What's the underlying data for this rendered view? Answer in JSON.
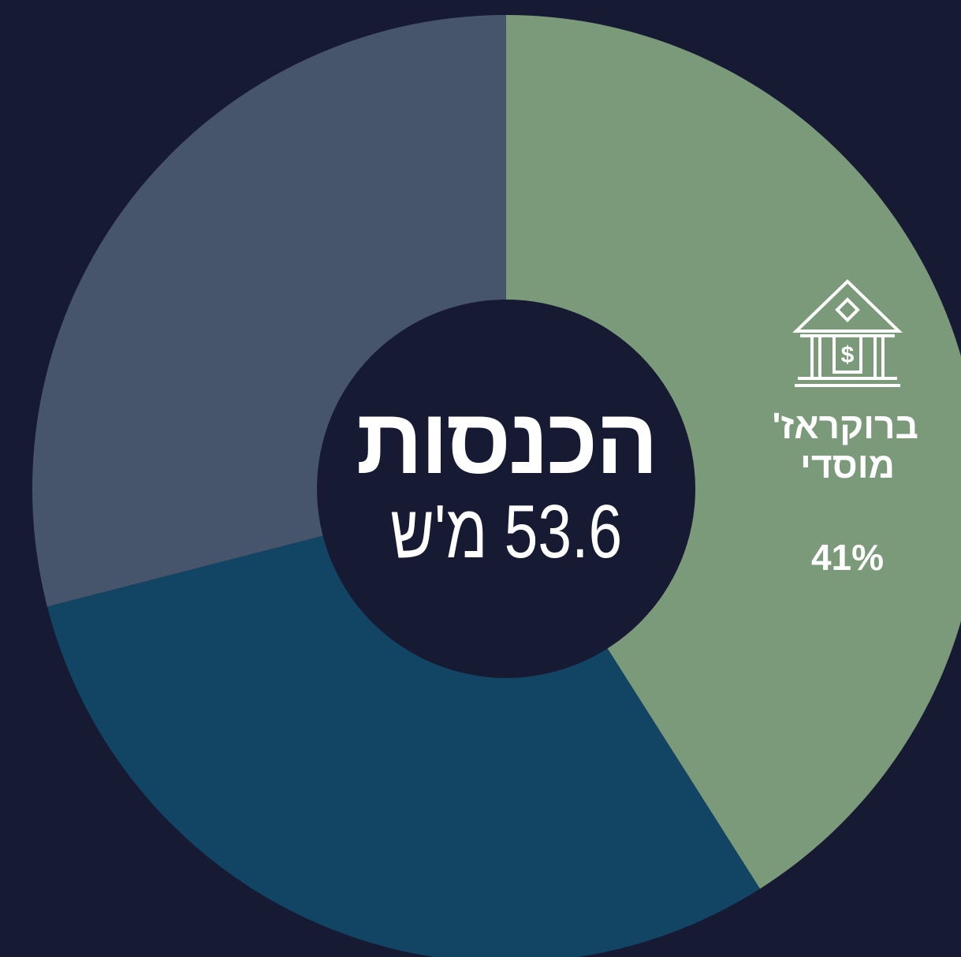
{
  "chart_data": {
    "type": "donut",
    "title": "הכנסות",
    "subtitle": "53.6 מ'ש",
    "categories": [
      "ברוקראז' מוסדי",
      null,
      null
    ],
    "values": [
      41,
      30,
      29
    ],
    "value_labels": [
      "41%",
      null,
      null
    ],
    "colors": [
      "#7b9a79",
      "#114563",
      "#46556b"
    ]
  }
}
